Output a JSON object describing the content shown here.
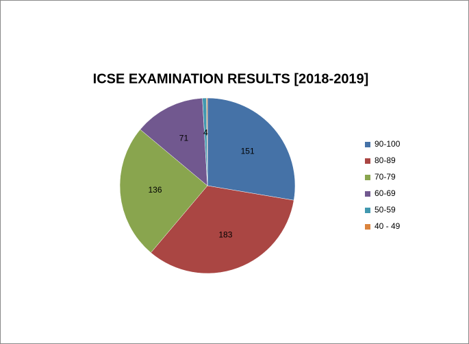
{
  "chart_data": {
    "type": "pie",
    "title": "ICSE EXAMINATION  RESULTS [2018-2019]",
    "categories": [
      "90-100",
      "80-89",
      "70-79",
      "60-69",
      "50-59",
      "40 - 49"
    ],
    "values": [
      151,
      183,
      136,
      71,
      4,
      1
    ],
    "value_labels": [
      "151",
      "183",
      "136",
      "71",
      "4",
      null
    ],
    "colors": [
      "#4572a7",
      "#aa4643",
      "#89a54e",
      "#71588f",
      "#4198af",
      "#db843d"
    ],
    "legend": "right"
  }
}
